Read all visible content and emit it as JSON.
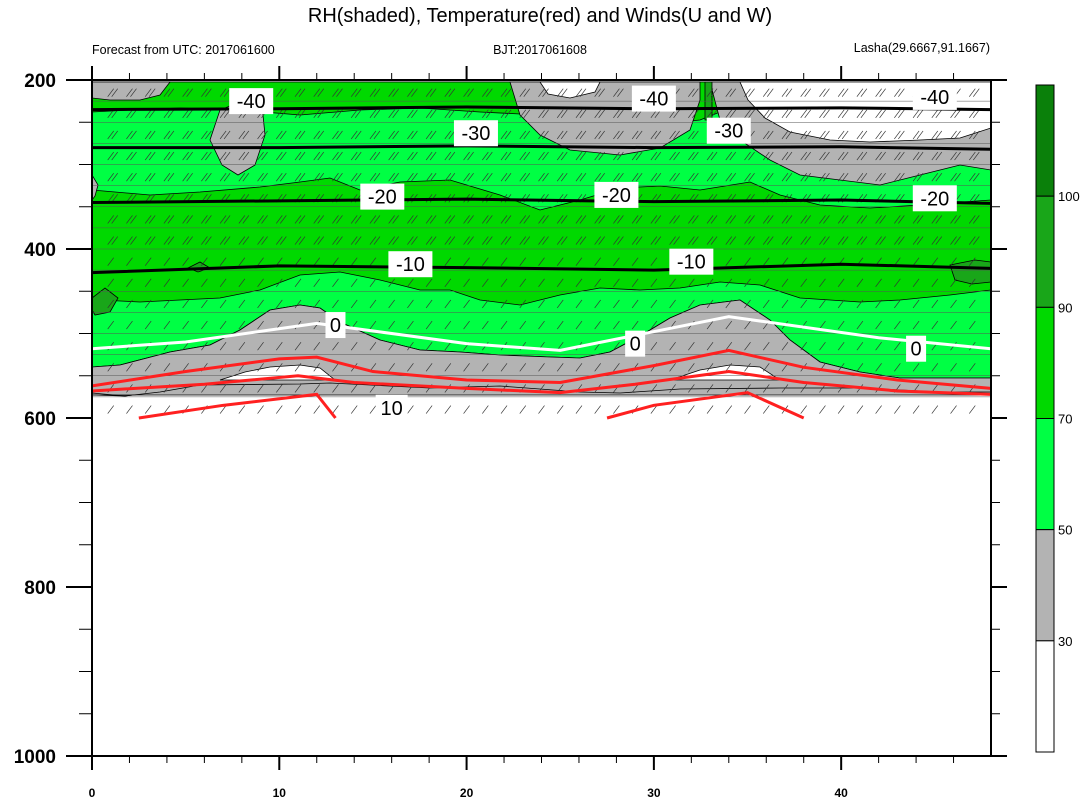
{
  "title": "RH(shaded), Temperature(red) and Winds(U and W)",
  "left_string": "Forecast from UTC: 2017061600",
  "center_string": "BJT:2017061608",
  "right_string": "Lasha(29.6667,91.1667)",
  "chart_data": {
    "type": "heatmap",
    "title": "RH(shaded), Temperature(red) and Winds(U and W)",
    "xlabel": "",
    "ylabel": "",
    "xlim": [
      0,
      48
    ],
    "ylim": [
      1000,
      200
    ],
    "y_scale": "linear, reversed (pressure levels)",
    "x_ticks": [
      "0",
      "10",
      "20",
      "30",
      "40"
    ],
    "y_ticks": [
      "200",
      "400",
      "600",
      "800",
      "1000"
    ],
    "colorbar": {
      "levels": [
        "30",
        "50",
        "70",
        "90",
        "100"
      ],
      "colors": [
        "#ffffff",
        "#b3b3b3",
        "#00ff44",
        "#00d900",
        "#19a619",
        "#0a800a"
      ]
    },
    "rh_surface_pressure": [
      {
        "x": 0,
        "p": 620
      },
      {
        "x": 48,
        "p": 620
      }
    ],
    "temperature_contours": [
      {
        "value": -40,
        "label": "-40",
        "color": "#000000",
        "points": [
          [
            0,
            235
          ],
          [
            10,
            234
          ],
          [
            20,
            232
          ],
          [
            30,
            234
          ],
          [
            40,
            233
          ],
          [
            48,
            235
          ]
        ]
      },
      {
        "value": -30,
        "label": "-30",
        "color": "#000000",
        "points": [
          [
            0,
            280
          ],
          [
            10,
            280
          ],
          [
            20,
            278
          ],
          [
            30,
            280
          ],
          [
            40,
            279
          ],
          [
            48,
            282
          ]
        ]
      },
      {
        "value": -20,
        "label": "-20",
        "color": "#000000",
        "points": [
          [
            0,
            345
          ],
          [
            10,
            343
          ],
          [
            20,
            341
          ],
          [
            30,
            344
          ],
          [
            40,
            342
          ],
          [
            48,
            346
          ]
        ]
      },
      {
        "value": -10,
        "label": "-10",
        "color": "#000000",
        "points": [
          [
            0,
            428
          ],
          [
            10,
            420
          ],
          [
            20,
            422
          ],
          [
            30,
            425
          ],
          [
            40,
            418
          ],
          [
            48,
            423
          ]
        ]
      },
      {
        "value": 0,
        "label": "0",
        "color": "#ffffff",
        "points": [
          [
            0,
            518
          ],
          [
            5,
            510
          ],
          [
            12,
            488
          ],
          [
            20,
            512
          ],
          [
            25,
            520
          ],
          [
            34,
            480
          ],
          [
            42,
            505
          ],
          [
            48,
            518
          ]
        ]
      },
      {
        "value": 10,
        "label": "10",
        "color": "#ff2020",
        "points": [
          [
            2.5,
            600
          ],
          [
            7,
            585
          ],
          [
            12,
            572
          ],
          [
            13,
            600
          ]
        ]
      },
      {
        "value": 10,
        "label": "",
        "color": "#ff2020",
        "points": [
          [
            27.5,
            600
          ],
          [
            30,
            585
          ],
          [
            35,
            570
          ],
          [
            38,
            600
          ]
        ]
      }
    ]
  }
}
